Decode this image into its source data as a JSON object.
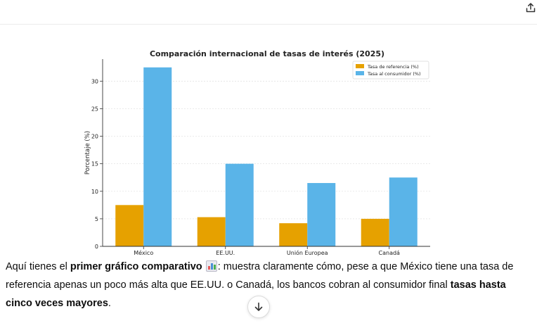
{
  "message": {
    "intro": "Aquí tienes el ",
    "bold1": "primer gráfico comparativo",
    "emoji": "📊",
    "middle": ": muestra claramente cómo, pese a que México tiene una tasa de referencia apenas un poco más alta que EE.UU. o Canadá, los bancos cobran al consumidor final ",
    "bold2": "tasas hasta cinco veces mayores",
    "end": "."
  },
  "icons": {
    "share": "share-icon",
    "scroll_down": "arrow-down-icon"
  },
  "colors": {
    "reference": "#e6a100",
    "consumer": "#5ab4e8"
  },
  "chart_data": {
    "type": "bar",
    "title": "Comparación internacional de tasas de interés (2025)",
    "xlabel": "",
    "ylabel": "Porcentaje (%)",
    "categories": [
      "México",
      "EE.UU.",
      "Unión Europea",
      "Canadá"
    ],
    "series": [
      {
        "name": "Tasa de referencia (%)",
        "values": [
          7.5,
          5.3,
          4.2,
          5.0
        ]
      },
      {
        "name": "Tasa al consumidor (%)",
        "values": [
          32.5,
          15.0,
          11.5,
          12.5
        ]
      }
    ],
    "ylim": [
      0,
      34
    ],
    "yticks": [
      "0",
      "5",
      "10",
      "15",
      "20",
      "25",
      "30"
    ],
    "grid": true,
    "legend_position": "top-right"
  }
}
